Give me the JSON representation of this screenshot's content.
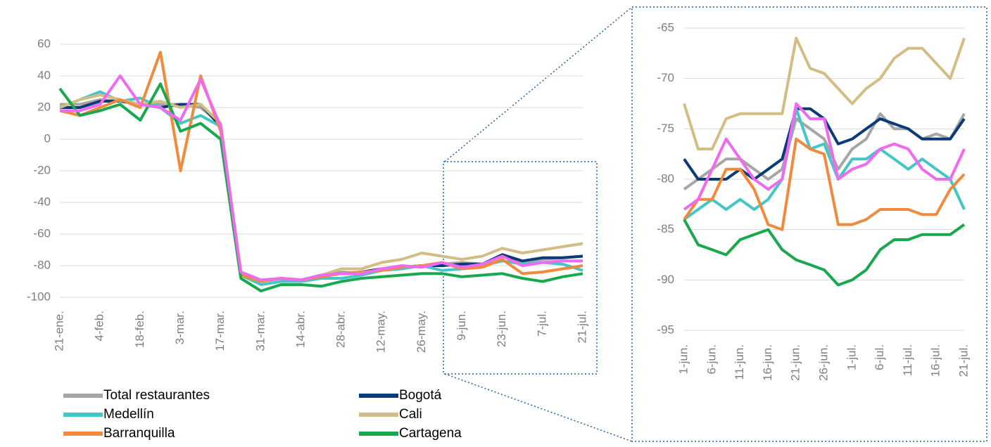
{
  "chart_data": [
    {
      "type": "line",
      "categories": [
        "21-ene.",
        null,
        "4-feb.",
        null,
        "18-feb.",
        null,
        "3-mar.",
        null,
        "17-mar.",
        null,
        "31-mar.",
        null,
        "14-abr.",
        null,
        "28-abr.",
        null,
        "12-may.",
        null,
        "26-may.",
        null,
        "9-jun.",
        null,
        "23-jun.",
        null,
        "7-jul.",
        null,
        "21-jul."
      ],
      "ylim": [
        -100,
        60
      ],
      "yticks": [
        60,
        40,
        20,
        0,
        -20,
        -40,
        -60,
        -80,
        -100
      ],
      "grid": true,
      "series": [
        {
          "name": "Total restaurantes",
          "color": "#a6a6a6",
          "values": [
            22,
            22,
            25,
            24,
            22,
            22,
            22,
            20,
            10,
            -85,
            -90,
            -88,
            -89,
            -86,
            -84,
            -85,
            -82,
            -81,
            -80,
            -79,
            -78,
            -79,
            -74,
            -78,
            -76,
            -75,
            -74
          ]
        },
        {
          "name": "Bogotá",
          "color": "#0b3a78",
          "values": [
            20,
            20,
            24,
            24,
            22,
            20,
            22,
            22,
            8,
            -85,
            -90,
            -88,
            -89,
            -86,
            -85,
            -84,
            -82,
            -81,
            -80,
            -80,
            -79,
            -79,
            -73,
            -77,
            -75,
            -75,
            -74
          ]
        },
        {
          "name": "Medellín",
          "color": "#43c6c6",
          "values": [
            20,
            25,
            30,
            24,
            26,
            20,
            10,
            15,
            8,
            -86,
            -92,
            -90,
            -90,
            -88,
            -88,
            -86,
            -83,
            -82,
            -80,
            -83,
            -82,
            -80,
            -77,
            -79,
            -78,
            -79,
            -83
          ]
        },
        {
          "name": "Cali",
          "color": "#d2bd85",
          "values": [
            20,
            25,
            28,
            25,
            22,
            24,
            20,
            22,
            10,
            -84,
            -90,
            -88,
            -89,
            -86,
            -82,
            -82,
            -78,
            -76,
            -72,
            -74,
            -76,
            -74,
            -69,
            -72,
            -70,
            -68,
            -66
          ]
        },
        {
          "name": "Barranquilla",
          "color": "#f08a3c",
          "values": [
            18,
            15,
            20,
            25,
            20,
            55,
            -20,
            40,
            5,
            -86,
            -90,
            -88,
            -89,
            -87,
            -85,
            -84,
            -83,
            -81,
            -80,
            -78,
            -82,
            -81,
            -76,
            -85,
            -84,
            -82,
            -80
          ]
        },
        {
          "name": "Cartagena",
          "color": "#1aa84f",
          "values": [
            32,
            15,
            18,
            22,
            12,
            35,
            5,
            10,
            0,
            -88,
            -96,
            -92,
            -92,
            -93,
            -90,
            -88,
            -87,
            -86,
            -85,
            -85,
            -87,
            -86,
            -85,
            -88,
            -90,
            -87,
            -85
          ]
        },
        {
          "color": "#f06af0",
          "values": [
            18,
            18,
            22,
            40,
            22,
            20,
            12,
            38,
            8,
            -84,
            -89,
            -88,
            -89,
            -86,
            -85,
            -85,
            -82,
            -80,
            -81,
            -78,
            -81,
            -79,
            -74,
            -80,
            -78,
            -77,
            -77
          ]
        }
      ]
    },
    {
      "type": "line",
      "categories": [
        "1-jun.",
        null,
        "6-jun.",
        null,
        "11-jun.",
        null,
        "16-jun.",
        null,
        "21-jun.",
        null,
        "26-jun.",
        null,
        "1-jul.",
        null,
        "6-jul.",
        null,
        "11-jul.",
        null,
        "16-jul.",
        null,
        "21-jul."
      ],
      "ylim": [
        -95,
        -65
      ],
      "yticks": [
        -65,
        -70,
        -75,
        -80,
        -85,
        -90,
        -95
      ],
      "grid": true,
      "series": [
        {
          "color": "#a6a6a6",
          "values": [
            -81,
            -80,
            -79,
            -78,
            -78,
            -79,
            -80,
            -79,
            -74,
            -75,
            -76,
            -79,
            -77,
            -76,
            -73.5,
            -75,
            -75,
            -76,
            -75.5,
            -76,
            -73.5
          ]
        },
        {
          "color": "#0b3a78",
          "values": [
            -78,
            -80,
            -80,
            -80,
            -79,
            -80,
            -79,
            -78,
            -73,
            -73,
            -74,
            -76.5,
            -76,
            -75,
            -74,
            -74.5,
            -75,
            -76,
            -76,
            -76,
            -74
          ]
        },
        {
          "color": "#43c6c6",
          "values": [
            -84,
            -83,
            -82,
            -83,
            -82,
            -83,
            -82,
            -80,
            -73,
            -77,
            -76.5,
            -80,
            -78,
            -78,
            -77,
            -78,
            -79,
            -78,
            -79,
            -80,
            -83
          ]
        },
        {
          "color": "#d2bd85",
          "values": [
            -72.5,
            -77,
            -77,
            -74,
            -73.5,
            -73.5,
            -73.5,
            -73.5,
            -66,
            -69,
            -69.5,
            -71,
            -72.5,
            -71,
            -70,
            -68,
            -67,
            -67,
            -68.5,
            -70,
            -66
          ]
        },
        {
          "color": "#f08a3c",
          "values": [
            -84,
            -82,
            -82,
            -79,
            -79,
            -81,
            -84.5,
            -85,
            -76,
            -77,
            -77.5,
            -84.5,
            -84.5,
            -84,
            -83,
            -83,
            -83,
            -83.5,
            -83.5,
            -81,
            -79.5
          ]
        },
        {
          "color": "#1aa84f",
          "values": [
            -84,
            -86.5,
            -87,
            -87.5,
            -86,
            -85.5,
            -85,
            -87,
            -88,
            -88.5,
            -89,
            -90.5,
            -90,
            -89,
            -87,
            -86,
            -86,
            -85.5,
            -85.5,
            -85.5,
            -84.5
          ]
        },
        {
          "color": "#f06af0",
          "values": [
            -83,
            -82,
            -79,
            -76,
            -78,
            -80,
            -81,
            -80,
            -72.5,
            -74,
            -74,
            -80,
            -79,
            -78.5,
            -77,
            -76.5,
            -77,
            -79,
            -80,
            -80,
            -77
          ]
        }
      ]
    }
  ]
}
